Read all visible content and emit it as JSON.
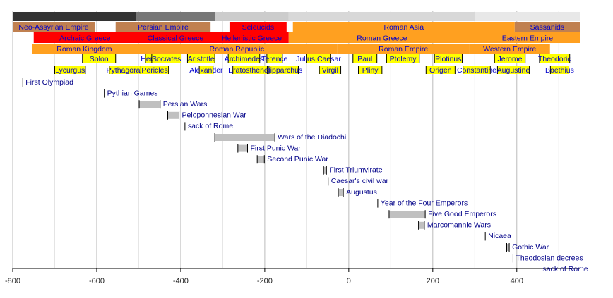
{
  "chart_data": {
    "type": "timeline",
    "xlim": [
      -800,
      550
    ],
    "xticks": [
      -800,
      -600,
      -400,
      -200,
      0,
      200,
      400
    ],
    "xminor": [
      -700,
      -500,
      -300,
      -100,
      100,
      300,
      500
    ],
    "grid": true,
    "label_color": "#0000cc",
    "event_color": "#000088",
    "rows": [
      {
        "kind": "band",
        "bars": [
          {
            "start": -800,
            "end": -506,
            "color": "#333333"
          },
          {
            "start": -506,
            "end": -319,
            "color": "#777777"
          },
          {
            "start": -319,
            "end": -143,
            "color": "#cccccc"
          },
          {
            "start": -143,
            "end": 301,
            "color": "#d8d8d8"
          },
          {
            "start": 301,
            "end": 550,
            "color": "#e8e8e8"
          }
        ]
      },
      {
        "kind": "band",
        "bars": [
          {
            "label": "Neo-Assyrian Empire",
            "start": -800,
            "end": -605,
            "color": "#c08050"
          },
          {
            "label": "Persian Empire",
            "start": -555,
            "end": -329,
            "color": "#c08050"
          },
          {
            "label": "Seleucids",
            "start": -284,
            "end": -148,
            "color": "#ff0000"
          },
          {
            "label": "Roman Asia",
            "start": -133,
            "end": 395,
            "color": "#ffa020"
          },
          {
            "label": "Sassanids",
            "start": 395,
            "end": 550,
            "color": "#c08050"
          }
        ]
      },
      {
        "kind": "band",
        "bars": [
          {
            "label": "Archaic Greece",
            "start": -750,
            "end": -506,
            "color": "#ff0000"
          },
          {
            "label": "Classical Greece",
            "start": -506,
            "end": -319,
            "color": "#ff0000"
          },
          {
            "label": "Hellenistic Greece",
            "start": -319,
            "end": -143,
            "color": "#ff0000"
          },
          {
            "label": "Roman Greece",
            "start": -143,
            "end": 301,
            "color": "#ffa020"
          },
          {
            "label": "Eastern Empire",
            "start": 301,
            "end": 550,
            "color": "#ffa020"
          }
        ]
      },
      {
        "kind": "band",
        "bars": [
          {
            "label": "Roman Kingdom",
            "start": -753,
            "end": -506,
            "color": "#ffa020"
          },
          {
            "label": "Roman Republic",
            "start": -506,
            "end": -27,
            "color": "#ffa020"
          },
          {
            "label": "Roman Empire",
            "start": -27,
            "end": 287,
            "color": "#ffa020"
          },
          {
            "label": "Western Empire",
            "start": 287,
            "end": 479,
            "color": "#ffa020"
          }
        ]
      },
      {
        "kind": "people",
        "bars": [
          {
            "label": "Solon",
            "start": -634,
            "end": -555,
            "color": "#ffff00"
          },
          {
            "label": "Herodotus",
            "start": -484,
            "end": -425,
            "color": "#ffff00"
          },
          {
            "label": "Socrates",
            "start": -469,
            "end": -399,
            "color": "#ffff00"
          },
          {
            "label": "Aristotle",
            "start": -384,
            "end": -319,
            "color": "#ffff00"
          },
          {
            "label": "Archimedes",
            "start": -287,
            "end": -212,
            "color": "#ffff00"
          },
          {
            "label": "Terence",
            "start": -195,
            "end": -158,
            "color": "#ffff00"
          },
          {
            "label": "Julius Caesar",
            "start": -100,
            "end": -44,
            "color": "#ffff00"
          },
          {
            "label": "Paul",
            "start": 10,
            "end": 67,
            "color": "#ffff00"
          },
          {
            "label": "Ptolemy",
            "start": 90,
            "end": 168,
            "color": "#ffff00"
          },
          {
            "label": "Plotinus",
            "start": 204,
            "end": 270,
            "color": "#ffff00"
          },
          {
            "label": "Jerome",
            "start": 347,
            "end": 420,
            "color": "#ffff00"
          },
          {
            "label": "Theodoric",
            "start": 454,
            "end": 526,
            "color": "#ffff00"
          }
        ]
      },
      {
        "kind": "people",
        "bars": [
          {
            "label": "Lycurgus",
            "start": -700,
            "end": -627,
            "color": "#ffff00"
          },
          {
            "label": "Pythagoras",
            "start": -570,
            "end": -495,
            "color": "#ffff00"
          },
          {
            "label": "Pericles",
            "start": -495,
            "end": -429,
            "color": "#ffff00"
          },
          {
            "label": "Alexander",
            "start": -356,
            "end": -323,
            "color": "#ffff00"
          },
          {
            "label": "Eratosthenes",
            "start": -276,
            "end": -194,
            "color": "#ffff00"
          },
          {
            "label": "Hipparchus",
            "start": -190,
            "end": -120,
            "color": "#ffff00"
          },
          {
            "label": "Virgil",
            "start": -70,
            "end": -19,
            "color": "#ffff00"
          },
          {
            "label": "Pliny",
            "start": 23,
            "end": 79,
            "color": "#ffff00"
          },
          {
            "label": "Origen",
            "start": 184,
            "end": 253,
            "color": "#ffff00"
          },
          {
            "label": "Constantine",
            "start": 272,
            "end": 337,
            "color": "#ffff00"
          },
          {
            "label": "Augustine",
            "start": 354,
            "end": 430,
            "color": "#ffff00"
          },
          {
            "label": "Boethius",
            "start": 480,
            "end": 524,
            "color": "#ffff00"
          }
        ]
      }
    ],
    "events": [
      {
        "label": "First Olympiad",
        "start": -776
      },
      {
        "label": "Pythian Games",
        "start": -582
      },
      {
        "label": "Persian Wars",
        "start": -499,
        "end": -449
      },
      {
        "label": "Peloponnesian War",
        "start": -431,
        "end": -404
      },
      {
        "label": "sack of Rome",
        "start": -390
      },
      {
        "label": "Wars of the Diadochi",
        "start": -319,
        "end": -176
      },
      {
        "label": "First Punic War",
        "start": -264,
        "end": -241
      },
      {
        "label": "Second Punic War",
        "start": -218,
        "end": -201
      },
      {
        "label": "First Triumvirate",
        "start": -60,
        "end": -53
      },
      {
        "label": "Caesar's civil war",
        "start": -49
      },
      {
        "label": "Augustus",
        "start": -25,
        "end": -13
      },
      {
        "label": "Year of the Four Emperors",
        "start": 69
      },
      {
        "label": "Five Good Emperors",
        "start": 96,
        "end": 182
      },
      {
        "label": "Marcomannic Wars",
        "start": 166,
        "end": 180
      },
      {
        "label": "Nicaea",
        "start": 325
      },
      {
        "label": "Gothic War",
        "start": 376,
        "end": 382
      },
      {
        "label": "Theodosian decrees",
        "start": 391
      },
      {
        "label": "sack of Rome",
        "start": 455
      }
    ]
  }
}
